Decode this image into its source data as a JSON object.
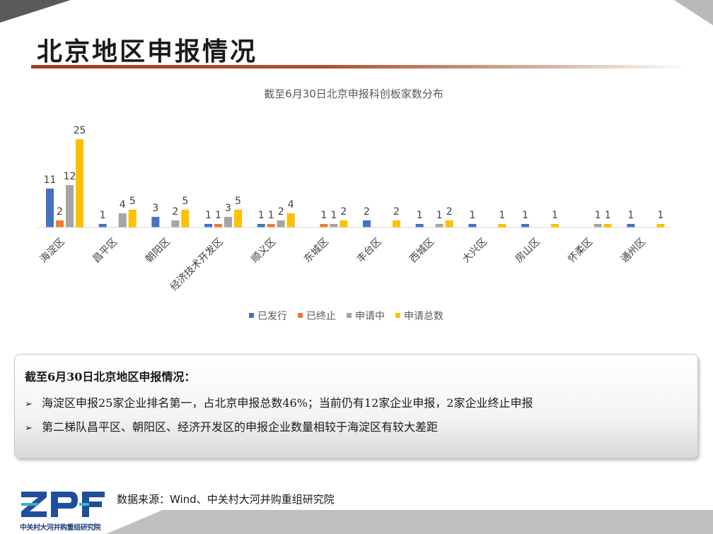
{
  "page": {
    "title": "北京地区申报情况",
    "source": "数据来源：Wind、中关村大河并购重组研究院",
    "logo_text": "中关村大河并购重组研究院"
  },
  "summary": {
    "heading": "截至6月30日北京地区申报情况：",
    "items": [
      "海淀区申报25家企业排名第一，占北京申报总数46%；当前仍有12家企业申报，2家企业终止申报",
      "第二梯队昌平区、朝阳区、经济开发区的申报企业数量相较于海淀区有较大差距"
    ]
  },
  "chart_data": {
    "type": "bar",
    "title": "截至6月30日北京申报科创板家数分布",
    "categories": [
      "海淀区",
      "昌平区",
      "朝阳区",
      "经济技术开发区",
      "顺义区",
      "东城区",
      "丰台区",
      "西城区",
      "大兴区",
      "房山区",
      "怀柔区",
      "通州区"
    ],
    "series": [
      {
        "name": "已发行",
        "color": "#4472c4",
        "values": [
          11,
          1,
          3,
          1,
          1,
          null,
          2,
          1,
          1,
          1,
          null,
          1
        ]
      },
      {
        "name": "已终止",
        "color": "#ed7d31",
        "values": [
          2,
          null,
          null,
          1,
          1,
          1,
          null,
          null,
          null,
          null,
          null,
          null
        ]
      },
      {
        "name": "申请中",
        "color": "#a5a5a5",
        "values": [
          12,
          4,
          2,
          3,
          2,
          1,
          null,
          1,
          null,
          null,
          1,
          null
        ]
      },
      {
        "name": "申请总数",
        "color": "#ffc000",
        "values": [
          25,
          5,
          5,
          5,
          4,
          2,
          2,
          2,
          1,
          1,
          1,
          1
        ]
      }
    ],
    "ylim": [
      0,
      27
    ],
    "grid": false,
    "legend_position": "bottom"
  }
}
